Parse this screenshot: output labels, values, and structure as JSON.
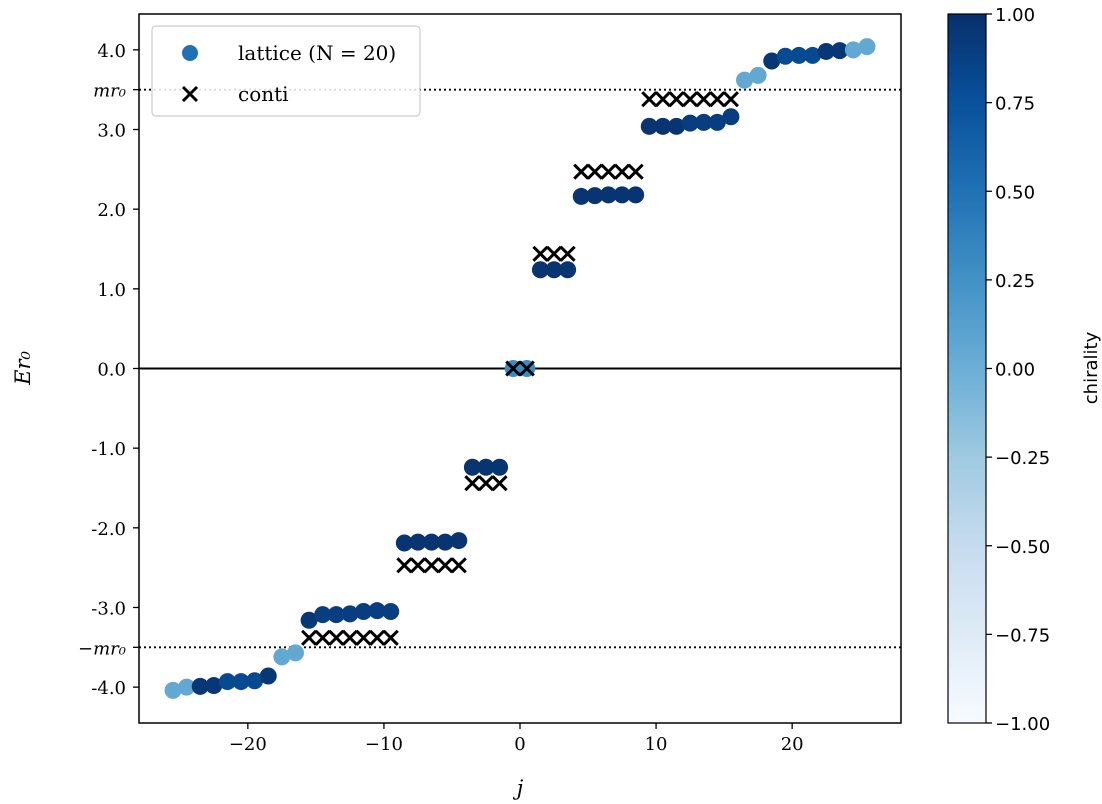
{
  "chart_data": {
    "type": "scatter",
    "xlabel": "j",
    "ylabel": "Er₀",
    "xlim": [
      -28,
      28
    ],
    "ylim": [
      -4.45,
      4.45
    ],
    "xticks": [
      -20,
      -10,
      0,
      10,
      20
    ],
    "xtick_labels": [
      "−20",
      "−10",
      "0",
      "10",
      "20"
    ],
    "yticks": [
      4.0,
      3.0,
      2.0,
      1.0,
      0.0,
      -1.0,
      -2.0,
      -3.0,
      -4.0
    ],
    "ytick_labels": [
      "4.0",
      "3.0",
      "2.0",
      "1.0",
      "0.0",
      "-1.0",
      "-2.0",
      "-3.0",
      "-4.0"
    ],
    "reference_lines": [
      {
        "label": "mr₀",
        "y": 3.5,
        "style": "dotted"
      },
      {
        "label": "−mr₀",
        "y": -3.5,
        "style": "dotted"
      },
      {
        "y": 0.0,
        "style": "solid"
      }
    ],
    "legend": {
      "placement": "top-left",
      "entries": [
        {
          "label": "lattice (N = 20)",
          "marker": "circle",
          "color": "#2171b5"
        },
        {
          "label": "conti",
          "marker": "x",
          "color": "#000000"
        }
      ]
    },
    "colorbar": {
      "label": "chirality",
      "range": [
        -1.0,
        1.0
      ],
      "ticks": [
        1.0,
        0.75,
        0.5,
        0.25,
        0.0,
        -0.25,
        -0.5,
        -0.75,
        -1.0
      ],
      "tick_labels": [
        "1.00",
        "0.75",
        "0.50",
        "0.25",
        "0.00",
        "−0.25",
        "−0.50",
        "−0.75",
        "−1.00"
      ],
      "colormap": "Blues",
      "colors": [
        "#f7fbff",
        "#deebf7",
        "#c6dbef",
        "#9ecae1",
        "#6baed6",
        "#4292c6",
        "#2171b5",
        "#08519c",
        "#08306b"
      ]
    },
    "series": [
      {
        "name": "lattice (N = 20)",
        "marker": "circle",
        "points": [
          {
            "x": -25.5,
            "y": -4.04,
            "c": 0.05
          },
          {
            "x": -24.5,
            "y": -4.0,
            "c": 0.05
          },
          {
            "x": -23.5,
            "y": -3.99,
            "c": 0.95
          },
          {
            "x": -22.5,
            "y": -3.98,
            "c": 0.95
          },
          {
            "x": -21.5,
            "y": -3.93,
            "c": 0.8
          },
          {
            "x": -20.5,
            "y": -3.93,
            "c": 0.8
          },
          {
            "x": -19.5,
            "y": -3.92,
            "c": 0.8
          },
          {
            "x": -18.5,
            "y": -3.86,
            "c": 0.95
          },
          {
            "x": -17.5,
            "y": -3.62,
            "c": 0.05
          },
          {
            "x": -16.5,
            "y": -3.57,
            "c": 0.05
          },
          {
            "x": -15.5,
            "y": -3.16,
            "c": 0.95
          },
          {
            "x": -14.5,
            "y": -3.09,
            "c": 0.9
          },
          {
            "x": -13.5,
            "y": -3.09,
            "c": 0.9
          },
          {
            "x": -12.5,
            "y": -3.08,
            "c": 0.9
          },
          {
            "x": -11.5,
            "y": -3.05,
            "c": 0.9
          },
          {
            "x": -10.5,
            "y": -3.04,
            "c": 0.9
          },
          {
            "x": -9.5,
            "y": -3.05,
            "c": 0.9
          },
          {
            "x": -8.5,
            "y": -2.19,
            "c": 0.97
          },
          {
            "x": -7.5,
            "y": -2.18,
            "c": 0.97
          },
          {
            "x": -6.5,
            "y": -2.18,
            "c": 0.97
          },
          {
            "x": -5.5,
            "y": -2.18,
            "c": 0.97
          },
          {
            "x": -4.5,
            "y": -2.16,
            "c": 0.97
          },
          {
            "x": -3.5,
            "y": -1.24,
            "c": 0.97
          },
          {
            "x": -2.5,
            "y": -1.24,
            "c": 0.97
          },
          {
            "x": -1.5,
            "y": -1.24,
            "c": 0.97
          },
          {
            "x": -0.5,
            "y": 0.0,
            "c": 0.3
          },
          {
            "x": 0.5,
            "y": 0.0,
            "c": 0.3
          },
          {
            "x": 1.5,
            "y": 1.24,
            "c": 0.97
          },
          {
            "x": 2.5,
            "y": 1.24,
            "c": 0.97
          },
          {
            "x": 3.5,
            "y": 1.24,
            "c": 0.97
          },
          {
            "x": 4.5,
            "y": 2.16,
            "c": 0.97
          },
          {
            "x": 5.5,
            "y": 2.17,
            "c": 0.97
          },
          {
            "x": 6.5,
            "y": 2.18,
            "c": 0.97
          },
          {
            "x": 7.5,
            "y": 2.18,
            "c": 0.97
          },
          {
            "x": 8.5,
            "y": 2.18,
            "c": 0.97
          },
          {
            "x": 9.5,
            "y": 3.04,
            "c": 0.97
          },
          {
            "x": 10.5,
            "y": 3.04,
            "c": 0.97
          },
          {
            "x": 11.5,
            "y": 3.04,
            "c": 0.97
          },
          {
            "x": 12.5,
            "y": 3.08,
            "c": 0.9
          },
          {
            "x": 13.5,
            "y": 3.09,
            "c": 0.9
          },
          {
            "x": 14.5,
            "y": 3.09,
            "c": 0.9
          },
          {
            "x": 15.5,
            "y": 3.16,
            "c": 0.9
          },
          {
            "x": 16.5,
            "y": 3.62,
            "c": 0.05
          },
          {
            "x": 17.5,
            "y": 3.68,
            "c": 0.05
          },
          {
            "x": 18.5,
            "y": 3.86,
            "c": 0.95
          },
          {
            "x": 19.5,
            "y": 3.92,
            "c": 0.8
          },
          {
            "x": 20.5,
            "y": 3.93,
            "c": 0.8
          },
          {
            "x": 21.5,
            "y": 3.93,
            "c": 0.8
          },
          {
            "x": 22.5,
            "y": 3.98,
            "c": 0.95
          },
          {
            "x": 23.5,
            "y": 3.99,
            "c": 0.95
          },
          {
            "x": 24.5,
            "y": 4.0,
            "c": 0.05
          },
          {
            "x": 25.5,
            "y": 4.04,
            "c": 0.05
          }
        ]
      },
      {
        "name": "conti",
        "marker": "x",
        "points": [
          {
            "x": -15.5,
            "y": -3.38
          },
          {
            "x": -14.5,
            "y": -3.38
          },
          {
            "x": -13.5,
            "y": -3.38
          },
          {
            "x": -12.5,
            "y": -3.38
          },
          {
            "x": -11.5,
            "y": -3.38
          },
          {
            "x": -10.5,
            "y": -3.38
          },
          {
            "x": -9.5,
            "y": -3.38
          },
          {
            "x": -8.5,
            "y": -2.47
          },
          {
            "x": -7.5,
            "y": -2.47
          },
          {
            "x": -6.5,
            "y": -2.47
          },
          {
            "x": -5.5,
            "y": -2.47
          },
          {
            "x": -4.5,
            "y": -2.47
          },
          {
            "x": -3.5,
            "y": -1.44
          },
          {
            "x": -2.5,
            "y": -1.44
          },
          {
            "x": -1.5,
            "y": -1.44
          },
          {
            "x": -0.5,
            "y": 0.0
          },
          {
            "x": 0.5,
            "y": 0.0
          },
          {
            "x": 1.5,
            "y": 1.44
          },
          {
            "x": 2.5,
            "y": 1.44
          },
          {
            "x": 3.5,
            "y": 1.44
          },
          {
            "x": 4.5,
            "y": 2.47
          },
          {
            "x": 5.5,
            "y": 2.47
          },
          {
            "x": 6.5,
            "y": 2.47
          },
          {
            "x": 7.5,
            "y": 2.47
          },
          {
            "x": 8.5,
            "y": 2.47
          },
          {
            "x": 9.5,
            "y": 3.38
          },
          {
            "x": 10.5,
            "y": 3.38
          },
          {
            "x": 11.5,
            "y": 3.38
          },
          {
            "x": 12.5,
            "y": 3.38
          },
          {
            "x": 13.5,
            "y": 3.38
          },
          {
            "x": 14.5,
            "y": 3.38
          },
          {
            "x": 15.5,
            "y": 3.38
          }
        ]
      }
    ]
  }
}
